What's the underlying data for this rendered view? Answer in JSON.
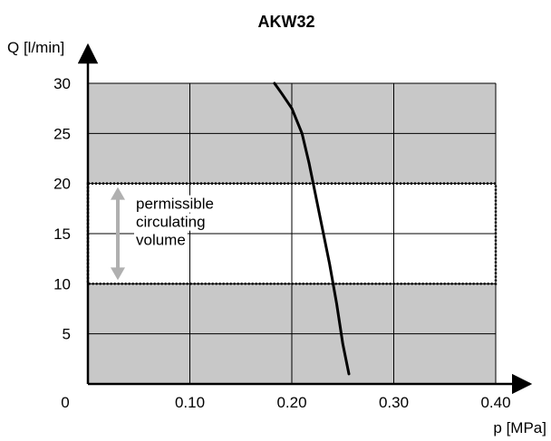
{
  "chart_data": {
    "type": "line",
    "title": "AKW32",
    "xlabel": "p [MPa]",
    "ylabel": "Q [l/min]",
    "xlim": [
      0,
      0.4
    ],
    "ylim": [
      0,
      30
    ],
    "x_ticks": [
      0,
      0.1,
      0.2,
      0.3,
      0.4
    ],
    "x_tick_labels": [
      "0",
      "0.10",
      "0.20",
      "0.30",
      "0.40"
    ],
    "y_ticks": [
      5,
      10,
      15,
      20,
      25,
      30
    ],
    "y_tick_labels": [
      "5",
      "10",
      "15",
      "20",
      "25",
      "30"
    ],
    "grid": true,
    "series": [
      {
        "x": [
          0.183,
          0.19,
          0.2,
          0.21,
          0.217,
          0.223,
          0.23,
          0.237,
          0.244,
          0.25,
          0.256
        ],
        "y": [
          30,
          29.0,
          27.5,
          25.0,
          22.0,
          19.0,
          15.5,
          12.0,
          8.0,
          4.0,
          1.0
        ]
      }
    ],
    "band": {
      "y_range": [
        10,
        20
      ],
      "label_lines": [
        "permissible",
        "circulating",
        "volume"
      ]
    },
    "colors": {
      "shaded_background": "#c8c8c8",
      "band_fill": "#ffffff",
      "arrow": "#b0b0b0",
      "curve": "#000000"
    }
  }
}
